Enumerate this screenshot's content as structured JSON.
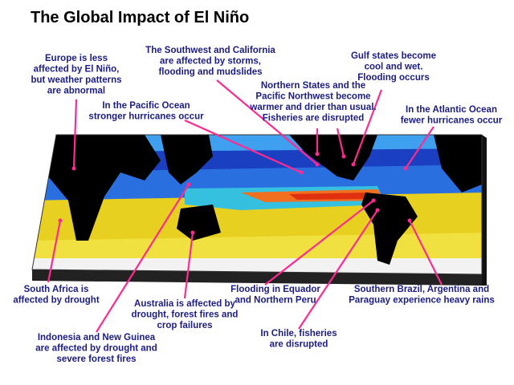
{
  "title": "The Global Impact of El Niño",
  "annotations": [
    {
      "lines": [
        "Europe is less",
        "affected by El Niño,",
        "but weather patterns",
        "are abnormal"
      ]
    },
    {
      "lines": [
        "The Southwest and California",
        "are affected by storms,",
        "flooding and mudslides"
      ]
    },
    {
      "lines": [
        "Gulf states become",
        "cool and wet.",
        "Flooding occurs"
      ]
    },
    {
      "lines": [
        "Northern States and the",
        "Pacific Northwest become",
        "warmer and drier than usual.",
        "Fisheries are disrupted"
      ]
    },
    {
      "lines": [
        "In the Pacific Ocean",
        "stronger hurricanes occur"
      ]
    },
    {
      "lines": [
        "In the Atlantic Ocean",
        "fewer hurricanes occur"
      ]
    },
    {
      "lines": [
        "South Africa is",
        "affected by drought"
      ]
    },
    {
      "lines": [
        "Australia is affected by",
        "drought, forest fires and",
        "crop failures"
      ]
    },
    {
      "lines": [
        "Indonesia and New Guinea",
        "are affected by drought and",
        "severe forest fires"
      ]
    },
    {
      "lines": [
        "Flooding in Equador",
        "and Northern Peru"
      ]
    },
    {
      "lines": [
        "Southern Brazil, Argentina and",
        "Paraguay experience heavy rains"
      ]
    },
    {
      "lines": [
        "In Chile, fisheries",
        "are disrupted"
      ]
    }
  ]
}
